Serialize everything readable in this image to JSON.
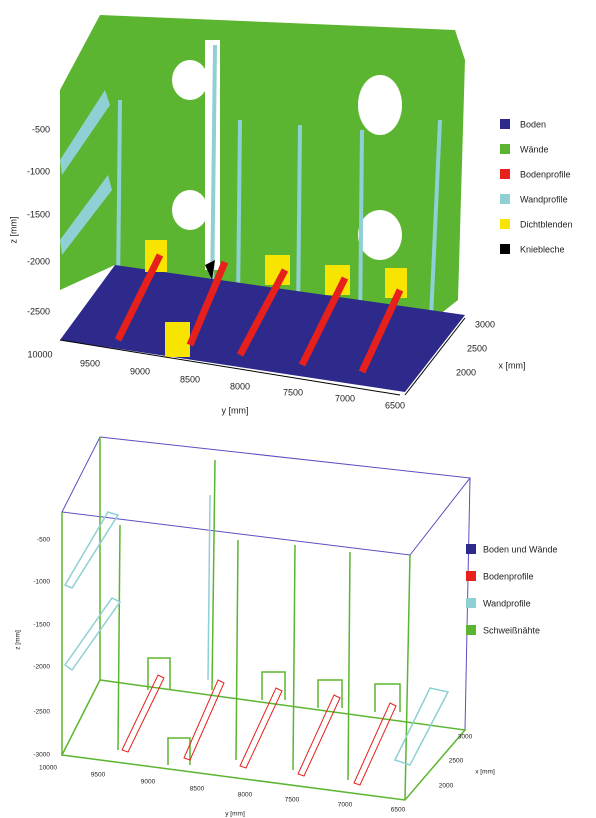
{
  "top": {
    "z_label": "z [mm]",
    "z_ticks": [
      "-500",
      "-1000",
      "-1500",
      "-2000",
      "-2500"
    ],
    "y_label": "y [mm]",
    "y_ticks": [
      "10000",
      "9500",
      "9000",
      "8500",
      "8000",
      "7500",
      "7000",
      "6500"
    ],
    "x_label": "x [mm]",
    "x_ticks": [
      "3000",
      "2500",
      "2000"
    ],
    "legend": [
      "Boden",
      "Wände",
      "Bodenprofile",
      "Wandprofile",
      "Dichtblenden",
      "Kniebleche"
    ]
  },
  "bottom": {
    "z_label": "z [mm]",
    "z_ticks": [
      "-500",
      "-1000",
      "-1500",
      "-2000",
      "-2500",
      "-3000"
    ],
    "y_label": "y [mm]",
    "y_ticks": [
      "10000",
      "9500",
      "9000",
      "8500",
      "8000",
      "7500",
      "7000",
      "6500"
    ],
    "x_label": "x [mm]",
    "x_ticks": [
      "3000",
      "2500",
      "2000"
    ],
    "legend": [
      "Boden und Wände",
      "Bodenprofile",
      "Wandprofile",
      "Schweißnähte"
    ]
  }
}
